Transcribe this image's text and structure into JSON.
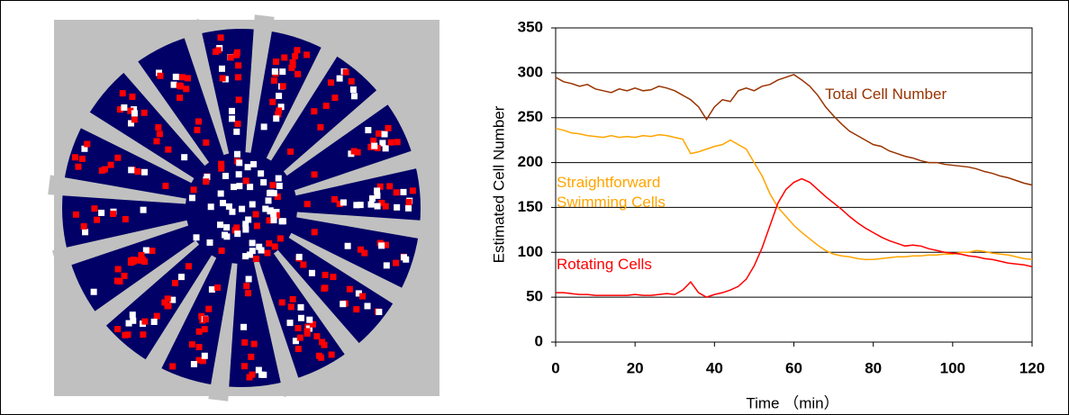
{
  "chart_data": {
    "type": "line",
    "xlabel": "Time （min）",
    "ylabel": "Estimated Cell Number",
    "xlim": [
      0,
      120
    ],
    "xticks": [
      0,
      20,
      40,
      60,
      80,
      100,
      120
    ],
    "ylim": [
      0,
      350
    ],
    "yticks": [
      0,
      50,
      100,
      150,
      200,
      250,
      300,
      350
    ],
    "grid": true,
    "x": [
      0,
      2,
      4,
      6,
      8,
      10,
      12,
      14,
      16,
      18,
      20,
      22,
      24,
      26,
      28,
      30,
      32,
      34,
      36,
      38,
      40,
      42,
      44,
      46,
      48,
      50,
      52,
      54,
      56,
      58,
      60,
      62,
      64,
      66,
      68,
      70,
      72,
      74,
      76,
      78,
      80,
      82,
      84,
      86,
      88,
      90,
      92,
      94,
      96,
      98,
      100,
      102,
      104,
      106,
      108,
      110,
      112,
      114,
      116,
      118,
      120
    ],
    "series": [
      {
        "name": "Total Cell Number",
        "color": "#993300",
        "values": [
          295,
          290,
          288,
          285,
          287,
          282,
          280,
          278,
          282,
          280,
          283,
          280,
          281,
          285,
          283,
          280,
          275,
          270,
          262,
          248,
          262,
          270,
          268,
          280,
          283,
          280,
          285,
          287,
          292,
          295,
          298,
          292,
          285,
          275,
          262,
          252,
          243,
          235,
          230,
          225,
          220,
          218,
          213,
          210,
          207,
          205,
          202,
          200,
          200,
          198,
          197,
          196,
          195,
          193,
          190,
          188,
          185,
          183,
          180,
          177,
          175
        ]
      },
      {
        "name": "Straightforward Swimming Cells",
        "color": "#ffa500",
        "values": [
          238,
          236,
          233,
          232,
          230,
          229,
          228,
          230,
          228,
          229,
          228,
          230,
          229,
          231,
          230,
          228,
          226,
          210,
          212,
          215,
          218,
          220,
          225,
          220,
          215,
          200,
          185,
          165,
          150,
          140,
          130,
          122,
          115,
          108,
          102,
          98,
          96,
          95,
          93,
          92,
          92,
          93,
          94,
          95,
          95,
          96,
          96,
          97,
          97,
          98,
          98,
          100,
          100,
          102,
          101,
          99,
          98,
          97,
          95,
          93,
          92
        ]
      },
      {
        "name": "Rotating Cells",
        "color": "#ff0000",
        "values": [
          55,
          55,
          54,
          53,
          53,
          52,
          52,
          52,
          52,
          52,
          53,
          52,
          52,
          53,
          54,
          53,
          58,
          67,
          55,
          50,
          53,
          55,
          58,
          62,
          70,
          85,
          105,
          130,
          155,
          170,
          178,
          182,
          178,
          170,
          162,
          155,
          148,
          140,
          133,
          127,
          122,
          117,
          113,
          110,
          107,
          108,
          107,
          104,
          102,
          100,
          99,
          98,
          96,
          95,
          93,
          92,
          90,
          88,
          87,
          86,
          84
        ]
      }
    ]
  }
}
